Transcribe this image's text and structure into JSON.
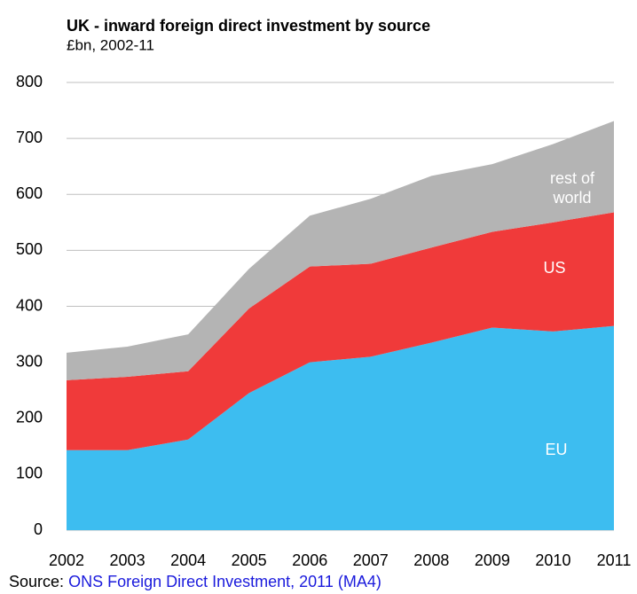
{
  "chart_data": {
    "type": "stacked_area",
    "title": "UK - inward foreign direct investment by source",
    "subtitle": "£bn, 2002-11",
    "categories": [
      "2002",
      "2003",
      "2004",
      "2005",
      "2006",
      "2007",
      "2008",
      "2009",
      "2010",
      "2011"
    ],
    "series": [
      {
        "name": "EU",
        "color": "#3dbdf0",
        "values": [
          143,
          143,
          162,
          245,
          300,
          310,
          335,
          362,
          355,
          365
        ]
      },
      {
        "name": "US",
        "color": "#f03a3a",
        "values": [
          125,
          131,
          122,
          151,
          171,
          166,
          170,
          171,
          195,
          203
        ]
      },
      {
        "name": "rest of world",
        "color": "#b4b4b4",
        "values": [
          49,
          54,
          66,
          71,
          91,
          116,
          128,
          121,
          140,
          163
        ]
      }
    ],
    "ylim": [
      0,
      800
    ],
    "yticks": [
      0,
      100,
      200,
      300,
      400,
      500,
      600,
      700,
      800
    ],
    "grid": true,
    "source_label": "Source:",
    "source_link": "ONS Foreign Direct Investment, 2011 (MA4)"
  }
}
